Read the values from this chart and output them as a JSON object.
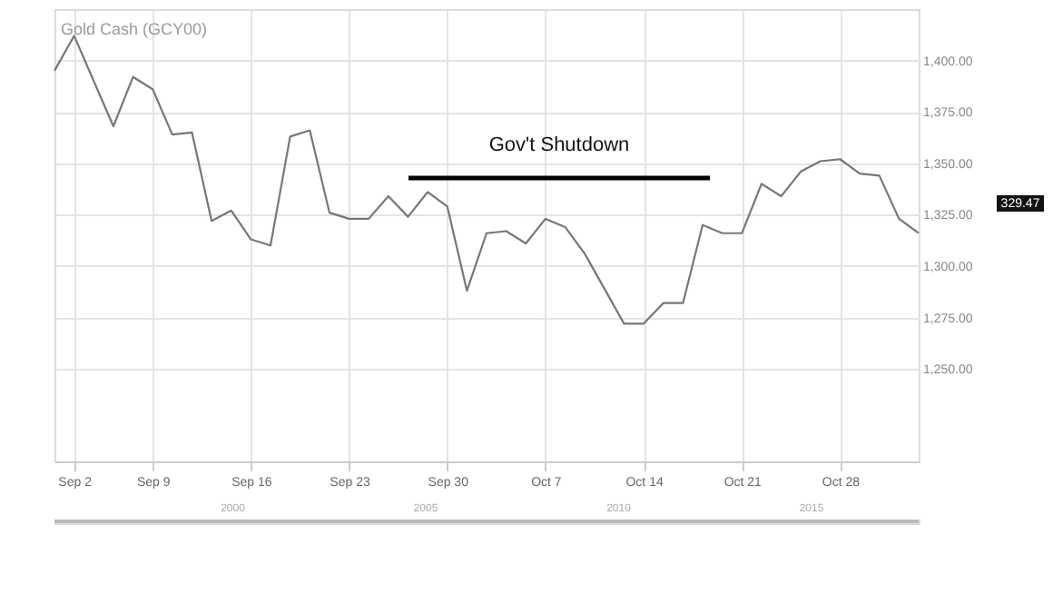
{
  "chart_data": {
    "type": "line",
    "title": "Gold Cash (GCY00)",
    "categories": [
      null,
      "Sep 2",
      null,
      null,
      null,
      "Sep 9",
      null,
      null,
      null,
      null,
      "Sep 16",
      null,
      null,
      null,
      null,
      "Sep 23",
      null,
      null,
      null,
      null,
      "Sep 30",
      null,
      null,
      null,
      null,
      "Oct 7",
      null,
      null,
      null,
      null,
      "Oct 14",
      null,
      null,
      null,
      null,
      "Oct 21",
      null,
      null,
      null,
      null,
      "Oct 28",
      null,
      null,
      null,
      null
    ],
    "values": [
      1395,
      1412,
      1390,
      1368,
      1392,
      1386,
      1364,
      1365,
      1322,
      1327,
      1313,
      1310,
      1363,
      1366,
      1326,
      1323,
      1323,
      1334,
      1324,
      1336,
      1329,
      1288,
      1316,
      1317,
      1311,
      1323,
      1319,
      1306,
      1289,
      1272,
      1272,
      1282,
      1282,
      1320,
      1316,
      1316,
      1340,
      1334,
      1346,
      1351,
      1352,
      1345,
      1344,
      1323,
      1316
    ],
    "color": "#777777",
    "ylim": [
      1205,
      1425
    ],
    "yticks": [
      {
        "value": 1250,
        "label": "1,250.00"
      },
      {
        "value": 1275,
        "label": "1,275.00"
      },
      {
        "value": 1300,
        "label": "1,300.00"
      },
      {
        "value": 1325,
        "label": "1,325.00"
      },
      {
        "value": 1350,
        "label": "1,350.00"
      },
      {
        "value": 1375,
        "label": "1,375.00"
      },
      {
        "value": 1400,
        "label": "1,400.00"
      }
    ],
    "x2lim": [
      1995.4,
      2017.8
    ],
    "x2ticks": [
      2000,
      2005,
      2010,
      2015
    ],
    "grid": true,
    "marker": "none",
    "line_style": "solid",
    "annotations": [
      "Gov't Shutdown",
      "329.47"
    ]
  }
}
